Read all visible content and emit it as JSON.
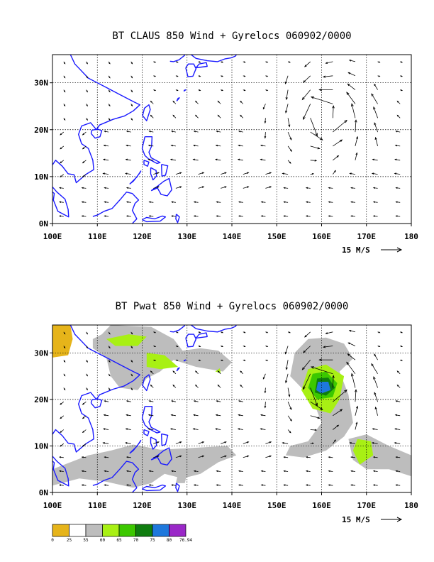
{
  "colors": {
    "coast": "#1a1aff",
    "arrow": "#000000",
    "grid": "#000000",
    "frame": "#000000"
  },
  "chart_data": [
    {
      "type": "vector-map",
      "title": "BT CLAUS 850 Wind + Gyrelocs 060902/0000",
      "x_ticks": [
        "100E",
        "110E",
        "120E",
        "130E",
        "140E",
        "150E",
        "160E",
        "170E",
        "180"
      ],
      "y_ticks": [
        "0N",
        "10N",
        "20N",
        "30N"
      ],
      "xlim_deg_east": [
        100,
        180
      ],
      "ylim_deg_north": [
        0,
        36
      ],
      "grid": "dashed every 10 degrees",
      "reference_vector": {
        "label": "15 M/S",
        "speed_ms": 15
      },
      "cyclone_center_deg": {
        "lon": 161,
        "lat": 23
      }
    },
    {
      "type": "vector-map",
      "title": "BT Pwat 850 Wind + Gyrelocs 060902/0000",
      "x_ticks": [
        "100E",
        "110E",
        "120E",
        "130E",
        "140E",
        "150E",
        "160E",
        "170E",
        "180"
      ],
      "y_ticks": [
        "0N",
        "10N",
        "20N",
        "30N"
      ],
      "xlim_deg_east": [
        100,
        180
      ],
      "ylim_deg_north": [
        0,
        36
      ],
      "grid": "dashed every 10 degrees",
      "reference_vector": {
        "label": "15 M/S",
        "speed_ms": 15
      },
      "cyclone_center_deg": {
        "lon": 161,
        "lat": 23
      },
      "shading": {
        "levels": [
          "0",
          "25",
          "55",
          "60",
          "65",
          "70",
          "75",
          "80",
          "76.94"
        ],
        "colors": [
          "#e6b41a",
          "#ffffff",
          "#bdbdbd",
          "#a8f014",
          "#3cc800",
          "#0f7d0f",
          "#1e78dc",
          "#9a28c8"
        ]
      }
    }
  ]
}
